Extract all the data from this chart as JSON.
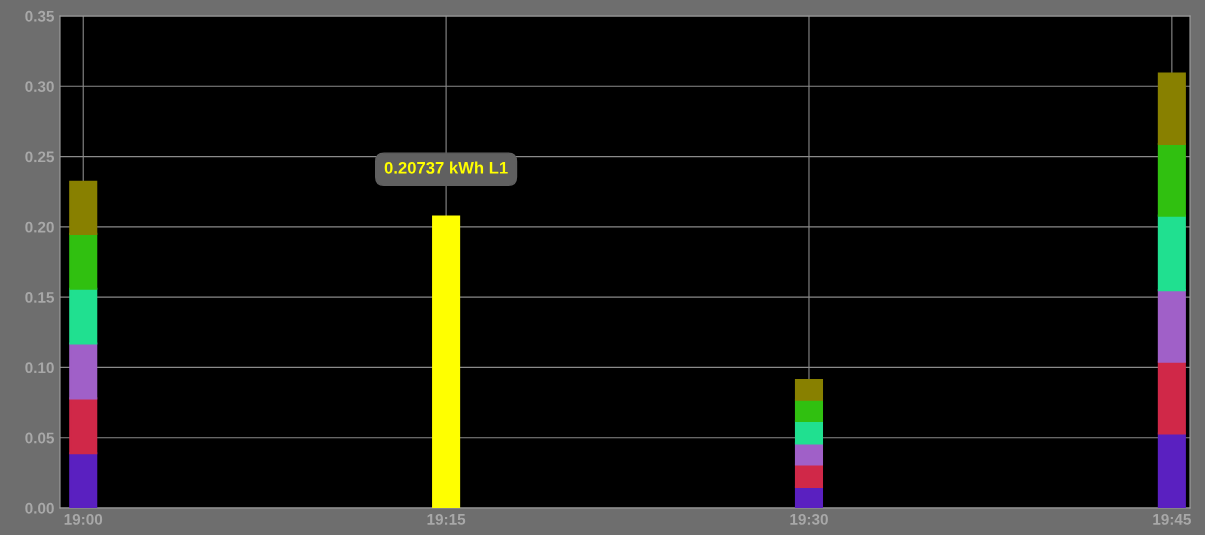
{
  "chart_data": {
    "type": "bar",
    "stacked": true,
    "x": [
      19,
      19.25,
      19.5,
      19.75
    ],
    "xlim": [
      18.984,
      19.7625
    ],
    "xticks": [
      {
        "value": 19,
        "label": "19:00"
      },
      {
        "value": 19.25,
        "label": "19:15"
      },
      {
        "value": 19.5,
        "label": "19:30"
      },
      {
        "value": 19.75,
        "label": "19:45"
      }
    ],
    "ylim": [
      0,
      0.35
    ],
    "yticks": [
      {
        "value": 0,
        "label": "0.00"
      },
      {
        "value": 0.05,
        "label": "0.05"
      },
      {
        "value": 0.1,
        "label": "0.10"
      },
      {
        "value": 0.15,
        "label": "0.15"
      },
      {
        "value": 0.2,
        "label": "0.20"
      },
      {
        "value": 0.25,
        "label": "0.25"
      },
      {
        "value": 0.3,
        "label": "0.30"
      },
      {
        "value": 0.35,
        "label": "0.35"
      }
    ],
    "grid": true,
    "series": [
      {
        "colors": [
          "#5a20c0",
          "#ffff00",
          "#5a20c0",
          "#5a20c0"
        ],
        "values": [
          0.039,
          0.20737,
          0.015,
          0.053
        ]
      },
      {
        "color": "#d02848",
        "values": [
          0.039,
          null,
          0.016,
          0.051
        ]
      },
      {
        "color": "#a060c8",
        "values": [
          0.039,
          null,
          0.015,
          0.051
        ]
      },
      {
        "color": "#20e090",
        "values": [
          0.039,
          null,
          0.016,
          0.053
        ]
      },
      {
        "color": "#30c010",
        "values": [
          0.039,
          null,
          0.015,
          0.051
        ]
      },
      {
        "color": "#888000",
        "values": [
          0.037,
          null,
          0.014,
          0.05
        ]
      }
    ],
    "annotations": [
      {
        "text": "0.20737 kWh L1",
        "x": 19.25,
        "y": 0.20737
      }
    ]
  }
}
